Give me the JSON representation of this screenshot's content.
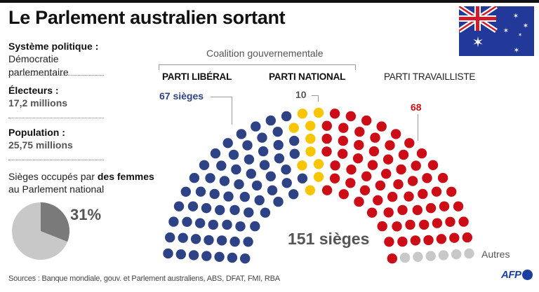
{
  "header": {
    "title": "Le Parlement australien sortant",
    "flag_icon": "australia-flag-icon"
  },
  "facts": [
    {
      "label": "Système politique :",
      "value": "Démocratie parlementaire"
    },
    {
      "label": "Électeurs :",
      "value": "17,2 millions"
    },
    {
      "label": "Population :",
      "value": "25,75 millions"
    }
  ],
  "women": {
    "line1_prefix": "Sièges occupés par ",
    "line1_bold": "des femmes",
    "line2": "au Parlement national",
    "percent_label": "31%",
    "percent": 31,
    "colors": {
      "women": "#7a7a7a",
      "rest": "#c8c8c8"
    }
  },
  "coalition_label": "Coalition gouvernementale",
  "parties": {
    "liberal": {
      "name": "PARTI LIBÉRAL",
      "seats_label": "67 sièges"
    },
    "national": {
      "name": "PARTI NATIONAL",
      "seats_label": "10"
    },
    "labor": {
      "name": "PARTI TRAVAILLISTE",
      "seats_label": "68"
    },
    "others": {
      "name": "Autres"
    }
  },
  "total_label": "151 sièges",
  "footer": {
    "sources": "Sources : Banque mondiale, gouv. et Parlement australiens, ABS, DFAT, FMI, RBA",
    "logo": "AFP"
  },
  "chart_data": [
    {
      "type": "parliament",
      "title": "Le Parlement australien sortant",
      "total": 151,
      "series": [
        {
          "name": "Parti libéral",
          "seats": 67,
          "color": "#2e4286"
        },
        {
          "name": "Parti national",
          "seats": 10,
          "color": "#f7c600"
        },
        {
          "name": "Parti travailliste",
          "seats": 68,
          "color": "#cc0d17"
        },
        {
          "name": "Autres",
          "seats": 6,
          "color": "#c8c8c8"
        }
      ],
      "annotations": [
        "Coalition gouvernementale (Parti libéral + Parti national)",
        "151 sièges"
      ],
      "rows": 7,
      "seats_per_row": [
        14,
        17,
        19,
        22,
        24,
        26,
        29
      ]
    },
    {
      "type": "pie",
      "title": "Sièges occupés par des femmes au Parlement national",
      "categories": [
        "Femmes",
        "Hommes / autres"
      ],
      "values": [
        31,
        69
      ]
    }
  ]
}
